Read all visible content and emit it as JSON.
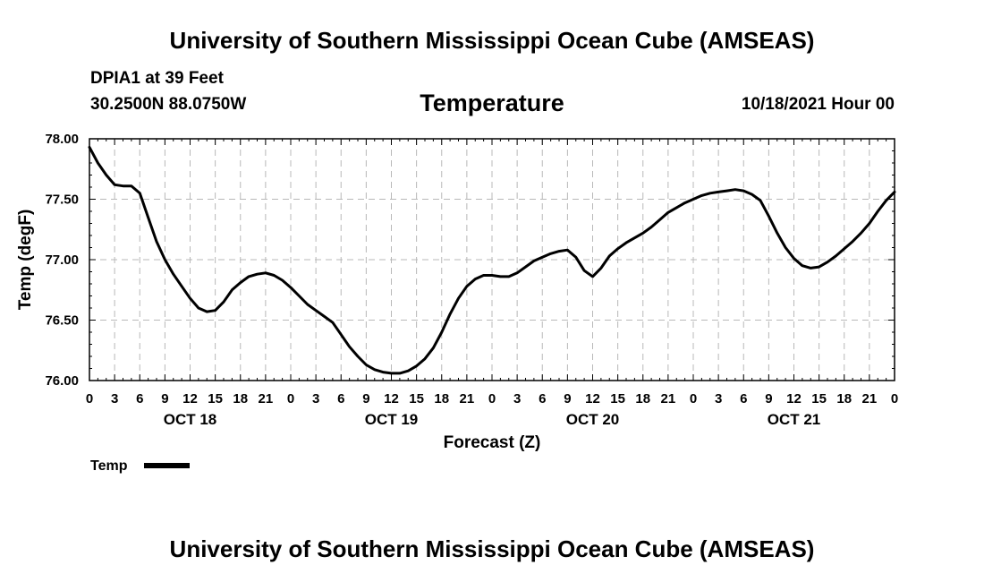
{
  "header": {
    "title": "University of Southern Mississippi Ocean Cube (AMSEAS)",
    "station": "DPIA1 at 39 Feet",
    "coords": "30.2500N  88.0750W",
    "timestamp": "10/18/2021 Hour 00"
  },
  "footer": {
    "title": "University of Southern Mississippi Ocean Cube (AMSEAS)"
  },
  "chart_data": {
    "type": "line",
    "title": "Temperature",
    "xlabel": "Forecast (Z)",
    "ylabel": "Temp (degF)",
    "xlim": [
      0,
      96
    ],
    "ylim": [
      76.0,
      78.0
    ],
    "yticks": [
      "76.00",
      "76.50",
      "77.00",
      "77.50",
      "78.00"
    ],
    "ytick_values": [
      76.0,
      76.5,
      77.0,
      77.5,
      78.0
    ],
    "xtick_labels": [
      "0",
      "3",
      "6",
      "9",
      "12",
      "15",
      "18",
      "21",
      "0",
      "3",
      "6",
      "9",
      "12",
      "15",
      "18",
      "21",
      "0",
      "3",
      "6",
      "9",
      "12",
      "15",
      "18",
      "21",
      "0",
      "3",
      "6",
      "9",
      "12",
      "15",
      "18",
      "21",
      "0"
    ],
    "day_labels": [
      {
        "label": "OCT 18",
        "hour": 12
      },
      {
        "label": "OCT 19",
        "hour": 36
      },
      {
        "label": "OCT 20",
        "hour": 60
      },
      {
        "label": "OCT 21",
        "hour": 84
      }
    ],
    "grid": true,
    "legend": {
      "label": "Temp",
      "position": "bottom-left"
    },
    "series": [
      {
        "name": "Temp",
        "color": "#000000",
        "x": [
          0,
          1,
          2,
          3,
          4,
          5,
          6,
          7,
          8,
          9,
          10,
          11,
          12,
          13,
          14,
          15,
          16,
          17,
          18,
          19,
          20,
          21,
          22,
          23,
          24,
          25,
          26,
          27,
          28,
          29,
          30,
          31,
          32,
          33,
          34,
          35,
          36,
          37,
          38,
          39,
          40,
          41,
          42,
          43,
          44,
          45,
          46,
          47,
          48,
          49,
          50,
          51,
          52,
          53,
          54,
          55,
          56,
          57,
          58,
          59,
          60,
          61,
          62,
          63,
          64,
          65,
          66,
          67,
          68,
          69,
          70,
          71,
          72,
          73,
          74,
          75,
          76,
          77,
          78,
          79,
          80,
          81,
          82,
          83,
          84,
          85,
          86,
          87,
          88,
          89,
          90,
          91,
          92,
          93,
          94,
          95,
          96
        ],
        "values": [
          77.93,
          77.8,
          77.7,
          77.62,
          77.61,
          77.61,
          77.55,
          77.35,
          77.15,
          77.0,
          76.88,
          76.78,
          76.68,
          76.6,
          76.57,
          76.58,
          76.65,
          76.75,
          76.81,
          76.86,
          76.88,
          76.89,
          76.87,
          76.83,
          76.77,
          76.7,
          76.63,
          76.58,
          76.53,
          76.48,
          76.38,
          76.28,
          76.2,
          76.13,
          76.09,
          76.07,
          76.06,
          76.06,
          76.08,
          76.12,
          76.18,
          76.27,
          76.4,
          76.55,
          76.68,
          76.78,
          76.84,
          76.87,
          76.87,
          76.86,
          76.86,
          76.89,
          76.94,
          76.99,
          77.02,
          77.05,
          77.07,
          77.08,
          77.02,
          76.91,
          76.86,
          76.93,
          77.03,
          77.09,
          77.14,
          77.18,
          77.22,
          77.27,
          77.33,
          77.39,
          77.43,
          77.47,
          77.5,
          77.53,
          77.55,
          77.56,
          77.57,
          77.58,
          77.57,
          77.54,
          77.49,
          77.36,
          77.22,
          77.1,
          77.01,
          76.95,
          76.93,
          76.94,
          76.98,
          77.03,
          77.09,
          77.15,
          77.22,
          77.3,
          77.4,
          77.49,
          77.56
        ]
      }
    ]
  }
}
